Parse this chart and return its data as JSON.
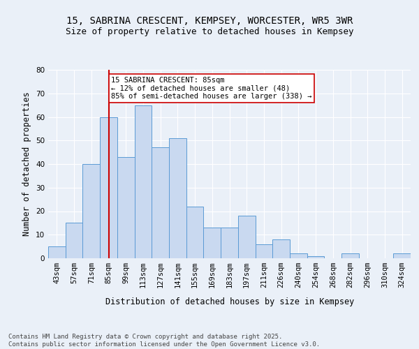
{
  "title_line1": "15, SABRINA CRESCENT, KEMPSEY, WORCESTER, WR5 3WR",
  "title_line2": "Size of property relative to detached houses in Kempsey",
  "xlabel": "Distribution of detached houses by size in Kempsey",
  "ylabel": "Number of detached properties",
  "bar_labels": [
    "43sqm",
    "57sqm",
    "71sqm",
    "85sqm",
    "99sqm",
    "113sqm",
    "127sqm",
    "141sqm",
    "155sqm",
    "169sqm",
    "183sqm",
    "197sqm",
    "211sqm",
    "226sqm",
    "240sqm",
    "254sqm",
    "268sqm",
    "282sqm",
    "296sqm",
    "310sqm",
    "324sqm"
  ],
  "bar_values": [
    5,
    15,
    40,
    60,
    43,
    65,
    47,
    51,
    22,
    13,
    13,
    18,
    6,
    8,
    2,
    1,
    0,
    2,
    0,
    0,
    2
  ],
  "bar_color": "#c9d9f0",
  "bar_edge_color": "#5b9bd5",
  "reference_line_x": 3,
  "reference_line_color": "#cc0000",
  "annotation_text": "15 SABRINA CRESCENT: 85sqm\n← 12% of detached houses are smaller (48)\n85% of semi-detached houses are larger (338) →",
  "annotation_box_color": "#ffffff",
  "annotation_box_edge_color": "#cc0000",
  "ylim": [
    0,
    80
  ],
  "yticks": [
    0,
    10,
    20,
    30,
    40,
    50,
    60,
    70,
    80
  ],
  "bg_color": "#eaf0f8",
  "plot_bg_color": "#eaf0f8",
  "footer_text": "Contains HM Land Registry data © Crown copyright and database right 2025.\nContains public sector information licensed under the Open Government Licence v3.0.",
  "title_fontsize": 10,
  "subtitle_fontsize": 9,
  "axis_label_fontsize": 8.5,
  "tick_fontsize": 7.5,
  "annotation_fontsize": 7.5,
  "footer_fontsize": 6.5
}
